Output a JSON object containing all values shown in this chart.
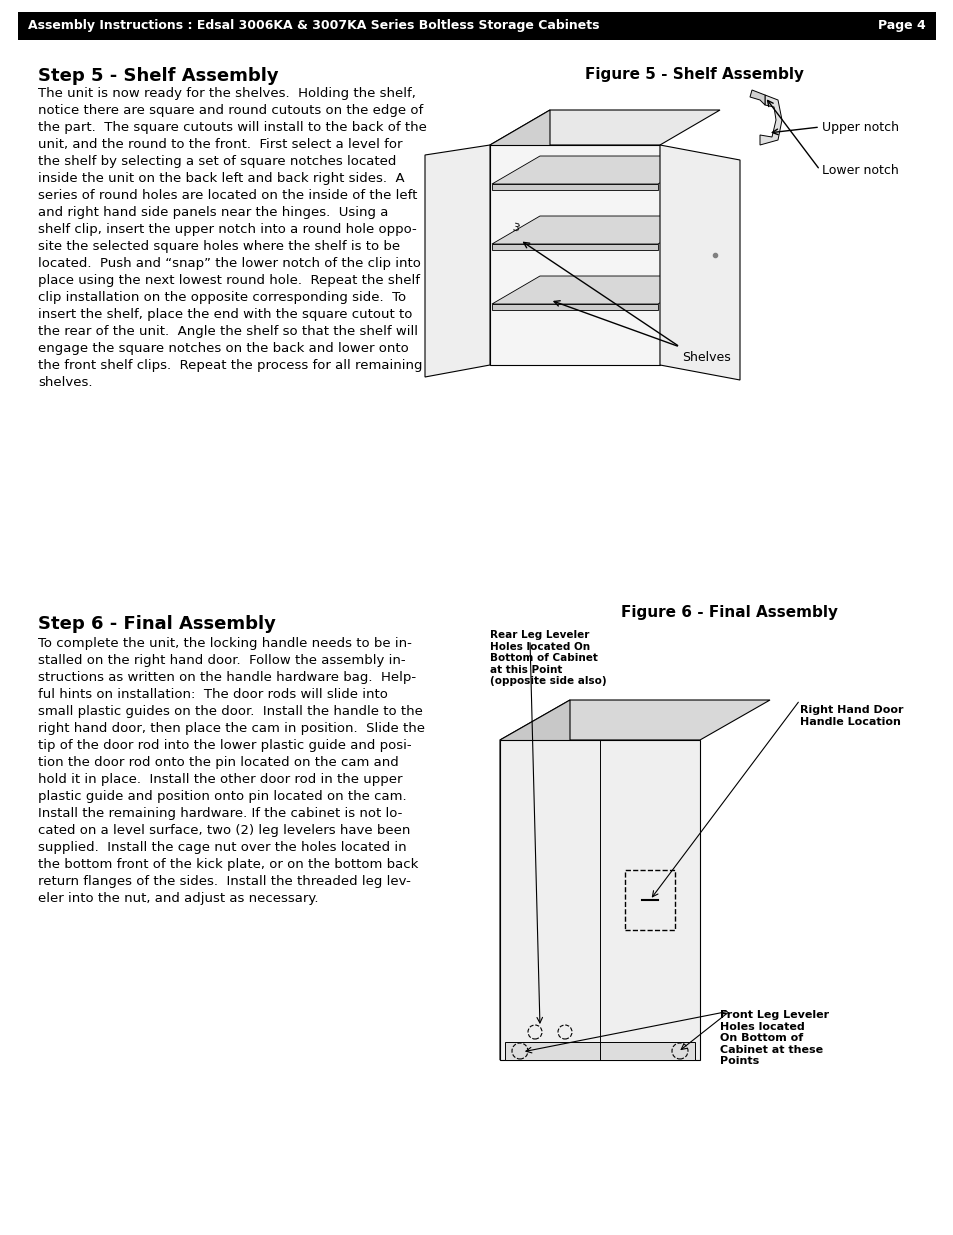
{
  "header_text": "Assembly Instructions : Edsal 3006KA & 3007KA Series Boltless Storage Cabinets",
  "header_page": "Page 4",
  "header_bg": "#000000",
  "header_fg": "#ffffff",
  "header_fontsize": 9,
  "step5_title": "Step 5 - Shelf Assembly",
  "step5_body": "The unit is now ready for the shelves.  Holding the shelf,\nnotice there are square and round cutouts on the edge of\nthe part.  The square cutouts will install to the back of the\nunit, and the round to the front.  First select a level for\nthe shelf by selecting a set of square notches located\ninside the unit on the back left and back right sides.  A\nseries of round holes are located on the inside of the left\nand right hand side panels near the hinges.  Using a\nshelf clip, insert the upper notch into a round hole oppo-\nsite the selected square holes where the shelf is to be\nlocated.  Push and “snap” the lower notch of the clip into\nplace using the next lowest round hole.  Repeat the shelf\nclip installation on the opposite corresponding side.  To\ninsert the shelf, place the end with the square cutout to\nthe rear of the unit.  Angle the shelf so that the shelf will\nengage the square notches on the back and lower onto\nthe front shelf clips.  Repeat the process for all remaining\nshelves.",
  "fig5_title": "Figure 5 - Shelf Assembly",
  "fig5_label_upper": "Upper notch",
  "fig5_label_lower": "Lower notch",
  "fig5_label_shelves": "Shelves",
  "step6_title": "Step 6 - Final Assembly",
  "step6_body": "To complete the unit, the locking handle needs to be in-\nstalled on the right hand door.  Follow the assembly in-\nstructions as written on the handle hardware bag.  Help-\nful hints on installation:  The door rods will slide into\nsmall plastic guides on the door.  Install the handle to the\nright hand door, then place the cam in position.  Slide the\ntip of the door rod into the lower plastic guide and posi-\ntion the door rod onto the pin located on the cam and\nhold it in place.  Install the other door rod in the upper\nplastic guide and position onto pin located on the cam.\nInstall the remaining hardware. If the cabinet is not lo-\ncated on a level surface, two (2) leg levelers have been\nsupplied.  Install the cage nut over the holes located in\nthe bottom front of the kick plate, or on the bottom back\nreturn flanges of the sides.  Install the threaded leg lev-\neler into the nut, and adjust as necessary.",
  "fig6_title": "Figure 6 - Final Assembly",
  "fig6_label_rear": "Rear Leg Leveler\nHoles located On\nBottom of Cabinet\nat this Point\n(opposite side also)",
  "fig6_label_right": "Right Hand Door\nHandle Location",
  "fig6_label_front": "Front Leg Leveler\nHoles located\nOn Bottom of\nCabinet at these\nPoints",
  "bg_color": "#ffffff",
  "text_color": "#000000",
  "title_fontsize": 13,
  "body_fontsize": 9.5,
  "fig_title_fontsize": 11
}
